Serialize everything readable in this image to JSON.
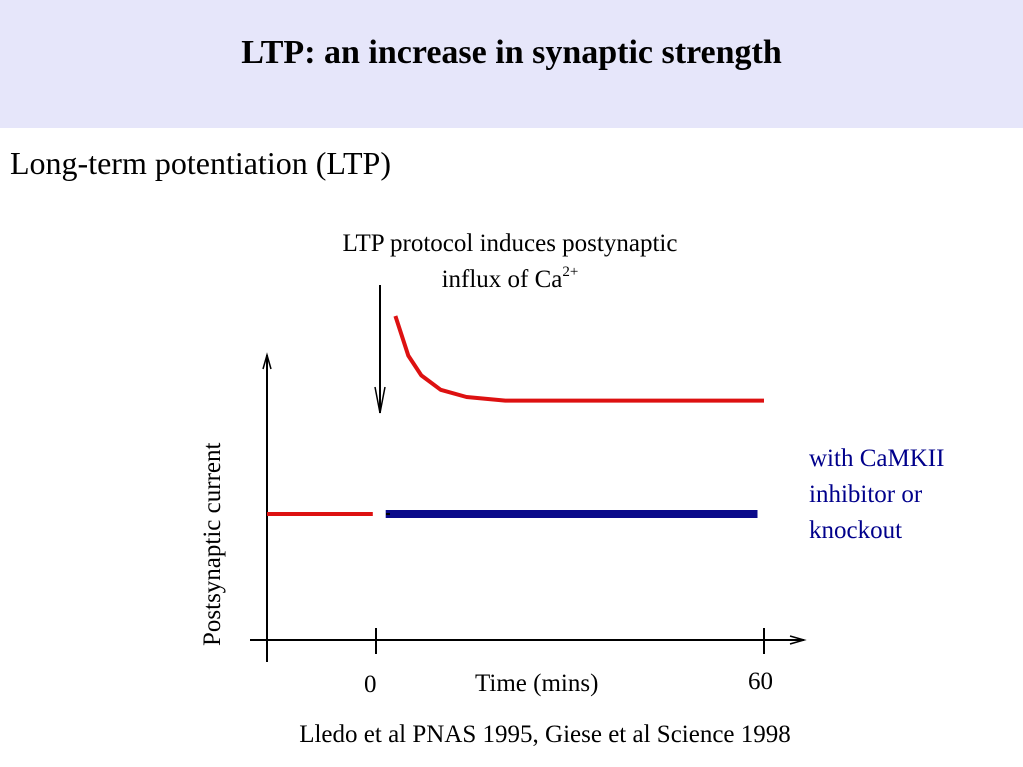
{
  "slide": {
    "title": "LTP: an increase in synaptic strength",
    "subtitle": "Long-term potentiation (LTP)",
    "annotation_line1": "LTP protocol induces postynaptic",
    "annotation_line2": "influx of Ca",
    "annotation_sup": "2+",
    "inhibitor_note": [
      "with CaMKII",
      "inhibitor or",
      "knockout"
    ],
    "citation": "Lledo et al PNAS 1995, Giese et al Science 1998"
  },
  "colors": {
    "title_band": "#e6e6fa",
    "ltp_line": "#dd1111",
    "control_line": "#0a0a8a",
    "axes": "#000000"
  },
  "chart_data": {
    "type": "line",
    "title": "",
    "xlabel": "Time (mins)",
    "ylabel": "Postsynaptic current",
    "x_ticks": [
      0,
      60
    ],
    "x_tick_labels": [
      "0",
      "60"
    ],
    "xlim": [
      -17,
      66
    ],
    "ylim": [
      0,
      2
    ],
    "grid": false,
    "annotations": [
      {
        "text": "LTP protocol induces postynaptic influx of Ca2+",
        "at_x": 0,
        "type": "arrow-down"
      }
    ],
    "series": [
      {
        "name": "",
        "color": "#dd1111",
        "segments": [
          {
            "x": [
              -17,
              -0.5
            ],
            "y": [
              0.7,
              0.7
            ]
          },
          {
            "x": [
              3,
              5,
              7,
              10,
              14,
              20,
              30,
              45,
              60
            ],
            "y": [
              1.8,
              1.58,
              1.47,
              1.39,
              1.35,
              1.33,
              1.33,
              1.33,
              1.33
            ]
          }
        ]
      },
      {
        "name": "with CaMKII inhibitor or knockout",
        "color": "#0a0a8a",
        "segments": [
          {
            "x": [
              1.5,
              59
            ],
            "y": [
              0.7,
              0.7
            ]
          }
        ]
      }
    ]
  }
}
